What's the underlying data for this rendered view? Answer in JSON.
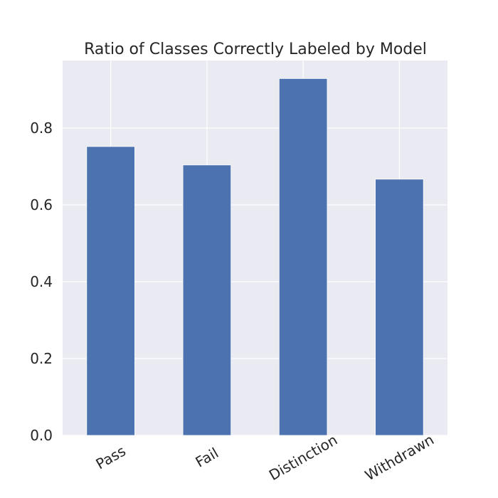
{
  "chart_data": {
    "type": "bar",
    "title": "Ratio of Classes Correctly Labeled by Model",
    "xlabel": "",
    "ylabel": "",
    "categories": [
      "Pass",
      "Fail",
      "Distinction",
      "Withdrawn"
    ],
    "values": [
      0.752,
      0.704,
      0.929,
      0.667
    ],
    "ylim": [
      0,
      0.976
    ],
    "yticks": [
      "0.0",
      "0.2",
      "0.4",
      "0.6",
      "0.8"
    ],
    "grid": true,
    "legend": "none",
    "x_tick_rotation_deg": -30
  },
  "colors": {
    "bar": "#4c72b0",
    "plot_background": "#eaeaf2",
    "grid": "#ffffff",
    "text": "#262626"
  }
}
